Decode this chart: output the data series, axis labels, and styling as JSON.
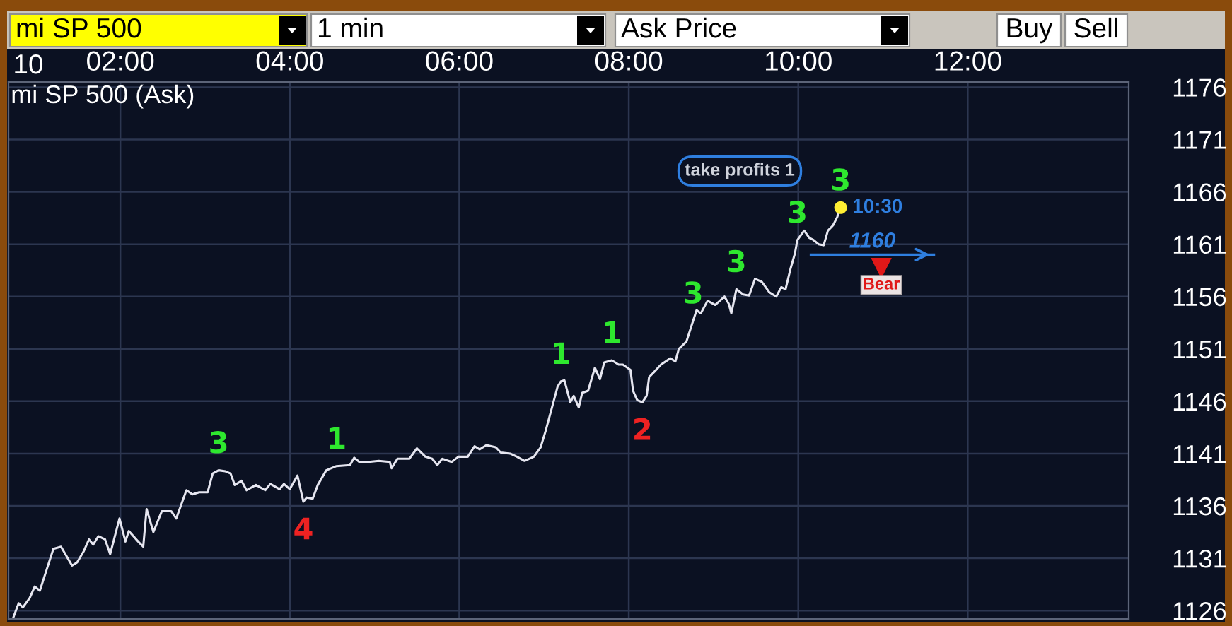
{
  "chart_data": {
    "type": "line",
    "title": "mi SP 500 (Ask)",
    "xlabel": "10",
    "series": [
      {
        "color": "#e6e6f0",
        "x": [
          0.74,
          0.8,
          0.85,
          0.93,
          0.99,
          1.05,
          1.13,
          1.21,
          1.3,
          1.43,
          1.49,
          1.57,
          1.63,
          1.68,
          1.74,
          1.82,
          1.88,
          1.99,
          2.06,
          2.1,
          2.21,
          2.27,
          2.31,
          2.39,
          2.49,
          2.6,
          2.66,
          2.78,
          2.85,
          2.93,
          3.03,
          3.09,
          3.16,
          3.24,
          3.3,
          3.35,
          3.43,
          3.49,
          3.6,
          3.71,
          3.77,
          3.88,
          3.93,
          4.0,
          4.09,
          4.16,
          4.2,
          4.27,
          4.33,
          4.43,
          4.55,
          4.71,
          4.76,
          4.82,
          4.93,
          5.05,
          5.18,
          5.2,
          5.27,
          5.41,
          5.5,
          5.6,
          5.68,
          5.74,
          5.8,
          5.91,
          5.99,
          6.1,
          6.18,
          6.24,
          6.32,
          6.43,
          6.49,
          6.6,
          6.68,
          6.77,
          6.88,
          6.96,
          7.02,
          7.1,
          7.16,
          7.2,
          7.24,
          7.31,
          7.35,
          7.41,
          7.45,
          7.52,
          7.6,
          7.66,
          7.71,
          7.8,
          7.88,
          7.93,
          8.02,
          8.05,
          8.1,
          8.16,
          8.21,
          8.24,
          8.3,
          8.38,
          8.49,
          8.55,
          8.59,
          8.68,
          8.76,
          8.8,
          8.85,
          8.93,
          9.02,
          9.13,
          9.18,
          9.21,
          9.27,
          9.35,
          9.42,
          9.49,
          9.57,
          9.66,
          9.74,
          9.8,
          9.85,
          9.91,
          9.96,
          9.99,
          10.07,
          10.13,
          10.18,
          10.24,
          10.3,
          10.35,
          10.41,
          10.46,
          10.5
        ],
        "values": [
          1125.4,
          1126.7,
          1126.3,
          1127.2,
          1128.3,
          1127.9,
          1129.9,
          1131.9,
          1132.1,
          1130.3,
          1130.6,
          1131.7,
          1132.8,
          1132.3,
          1133.1,
          1132.8,
          1131.4,
          1134.8,
          1132.6,
          1133.6,
          1132.6,
          1132.1,
          1135.7,
          1133.5,
          1135.5,
          1135.5,
          1134.8,
          1137.5,
          1137.1,
          1137.3,
          1137.3,
          1139.1,
          1139.4,
          1139.3,
          1139.1,
          1138.0,
          1138.4,
          1137.5,
          1138.0,
          1137.5,
          1138.1,
          1137.6,
          1138.1,
          1137.6,
          1138.9,
          1136.4,
          1136.8,
          1136.7,
          1138.0,
          1139.4,
          1139.8,
          1139.9,
          1140.6,
          1140.2,
          1140.2,
          1140.3,
          1140.2,
          1139.6,
          1140.5,
          1140.5,
          1141.5,
          1140.7,
          1140.5,
          1139.9,
          1140.5,
          1140.2,
          1140.7,
          1140.7,
          1141.7,
          1141.4,
          1141.8,
          1141.6,
          1141.1,
          1141.0,
          1140.7,
          1140.3,
          1140.7,
          1141.6,
          1143.2,
          1145.6,
          1147.4,
          1147.9,
          1148.0,
          1145.9,
          1146.5,
          1145.4,
          1146.8,
          1147.0,
          1149.2,
          1148.1,
          1149.7,
          1149.9,
          1149.5,
          1149.5,
          1149.0,
          1147.0,
          1146.1,
          1145.9,
          1146.5,
          1148.3,
          1148.8,
          1149.5,
          1150.1,
          1149.8,
          1151.0,
          1151.7,
          1153.7,
          1154.7,
          1154.4,
          1155.6,
          1155.2,
          1156.0,
          1155.3,
          1154.4,
          1156.7,
          1156.2,
          1156.1,
          1157.7,
          1157.4,
          1156.4,
          1156.0,
          1156.9,
          1156.7,
          1158.7,
          1160.1,
          1161.4,
          1162.3,
          1161.6,
          1161.4,
          1161.0,
          1160.9,
          1162.3,
          1162.8,
          1163.6,
          1164.5
        ]
      },
      {
        "type": "scatter",
        "color": "#ffee33",
        "x": [
          10.5
        ],
        "values": [
          1164.5
        ]
      }
    ],
    "xlim": [
      0.68,
      13.9
    ],
    "xticks": [
      {
        "value": 2,
        "label": "02:00"
      },
      {
        "value": 4,
        "label": "04:00"
      },
      {
        "value": 6,
        "label": "06:00"
      },
      {
        "value": 8,
        "label": "08:00"
      },
      {
        "value": 10,
        "label": "10:00"
      },
      {
        "value": 12,
        "label": "12:00"
      }
    ],
    "ylim": [
      1125.2,
      1176.5
    ],
    "yticks": [
      1126,
      1131,
      1136,
      1141,
      1146,
      1151,
      1156,
      1161,
      1166,
      1171,
      1176
    ],
    "grid": true,
    "ref_lines": [
      {
        "axis": "y",
        "value": 1160,
        "label": "1160",
        "color": "#2f7fe0"
      }
    ],
    "annotations": [
      "mi SP 500",
      "1 min",
      "Ask Price",
      "Buy",
      "Sell",
      "take profits 1",
      {
        "text": "10:30",
        "x": 10.5,
        "y": 1164.5
      },
      {
        "text": "Bear",
        "x": 10.98,
        "y": 1157.1
      },
      {
        "text": "3",
        "x": 3.16,
        "y": 1139.4
      },
      {
        "text": "4",
        "x": 4.16,
        "y": 1136.4
      },
      {
        "text": "1",
        "x": 4.55,
        "y": 1139.8
      },
      {
        "text": "1",
        "x": 7.2,
        "y": 1147.9
      },
      {
        "text": "1",
        "x": 7.8,
        "y": 1149.9
      },
      {
        "text": "2",
        "x": 8.16,
        "y": 1145.9
      },
      {
        "text": "3",
        "x": 8.76,
        "y": 1153.7
      },
      {
        "text": "3",
        "x": 9.27,
        "y": 1156.7
      },
      {
        "text": "3",
        "x": 9.99,
        "y": 1161.4
      },
      {
        "text": "3",
        "x": 10.5,
        "y": 1164.5
      }
    ]
  }
}
